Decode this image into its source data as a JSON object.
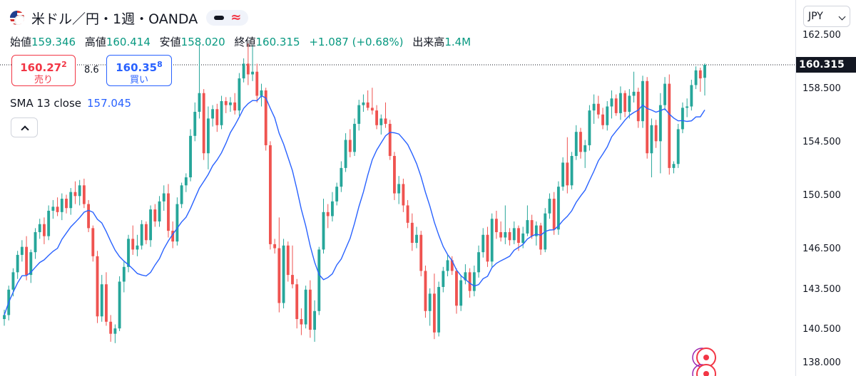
{
  "legend": {
    "symbol": "米ドル／円・1週・OANDA",
    "ohlc": [
      {
        "label": "始値",
        "value": "159.346"
      },
      {
        "label": "高値",
        "value": "160.414"
      },
      {
        "label": "安値",
        "value": "158.020"
      },
      {
        "label": "終値",
        "value": "160.315"
      }
    ],
    "change": "+1.087 (+0.68%)",
    "volume_label": "出来高",
    "volume": "1.4M",
    "sell": {
      "price_main": "160.27",
      "price_small": "2",
      "label": "売り"
    },
    "spread": "8.6",
    "buy": {
      "price_main": "160.35",
      "price_small": "8",
      "label": "買い"
    },
    "sma_label": "SMA 13 close",
    "sma_value": "157.045"
  },
  "currency": "JPY",
  "colors": {
    "up": "#26a69a",
    "down": "#ef5350",
    "sma": "#2962ff",
    "last_bg": "#131722"
  },
  "chart_data": {
    "type": "candlestick",
    "title": "",
    "y_axis": {
      "position": "right",
      "tick_labels": [
        "162.500",
        "158.500",
        "154.500",
        "150.500",
        "146.500",
        "143.500",
        "140.500",
        "138.000"
      ],
      "range": [
        137.4,
        162.8
      ]
    },
    "last_price": "160.315",
    "candles": [
      [
        141.3,
        142.0,
        140.8,
        141.6
      ],
      [
        141.6,
        143.8,
        141.2,
        143.5
      ],
      [
        143.5,
        145.1,
        143.0,
        144.8
      ],
      [
        144.8,
        146.4,
        144.3,
        146.1
      ],
      [
        146.1,
        147.2,
        145.6,
        146.7
      ],
      [
        146.7,
        147.5,
        144.2,
        144.6
      ],
      [
        144.6,
        146.5,
        144.0,
        146.3
      ],
      [
        146.3,
        148.1,
        145.8,
        147.8
      ],
      [
        147.8,
        148.8,
        147.3,
        148.4
      ],
      [
        148.4,
        148.9,
        146.9,
        147.5
      ],
      [
        147.5,
        149.8,
        147.2,
        149.4
      ],
      [
        149.4,
        150.2,
        148.8,
        149.7
      ],
      [
        149.7,
        150.4,
        149.0,
        149.3
      ],
      [
        149.3,
        150.7,
        148.7,
        150.3
      ],
      [
        150.3,
        150.6,
        149.2,
        149.6
      ],
      [
        149.6,
        151.1,
        149.1,
        150.8
      ],
      [
        150.8,
        151.6,
        149.9,
        150.5
      ],
      [
        150.5,
        151.7,
        149.8,
        151.3
      ],
      [
        151.3,
        151.8,
        149.6,
        149.9
      ],
      [
        149.9,
        150.2,
        147.8,
        148.1
      ],
      [
        148.1,
        148.3,
        145.6,
        146.0
      ],
      [
        146.0,
        146.4,
        141.0,
        141.5
      ],
      [
        141.5,
        144.6,
        141.1,
        143.9
      ],
      [
        143.9,
        144.8,
        140.8,
        141.1
      ],
      [
        141.1,
        141.6,
        139.6,
        140.2
      ],
      [
        140.2,
        140.9,
        139.5,
        140.6
      ],
      [
        140.6,
        144.5,
        140.4,
        144.1
      ],
      [
        144.1,
        145.6,
        143.3,
        145.2
      ],
      [
        145.2,
        147.6,
        144.8,
        147.3
      ],
      [
        147.3,
        148.3,
        146.1,
        146.5
      ],
      [
        146.5,
        147.6,
        146.0,
        146.8
      ],
      [
        146.8,
        148.7,
        146.5,
        148.4
      ],
      [
        148.4,
        148.6,
        146.9,
        147.2
      ],
      [
        147.2,
        149.8,
        146.7,
        149.5
      ],
      [
        149.5,
        149.9,
        148.2,
        148.6
      ],
      [
        148.6,
        150.5,
        148.2,
        150.1
      ],
      [
        150.1,
        151.3,
        149.4,
        150.7
      ],
      [
        150.7,
        151.4,
        147.4,
        147.9
      ],
      [
        147.9,
        148.6,
        146.6,
        147.1
      ],
      [
        147.1,
        150.4,
        146.8,
        149.9
      ],
      [
        149.9,
        151.5,
        149.6,
        151.3
      ],
      [
        151.3,
        152.2,
        150.8,
        151.9
      ],
      [
        151.9,
        155.5,
        151.6,
        155.0
      ],
      [
        155.0,
        157.5,
        154.6,
        156.8
      ],
      [
        156.8,
        161.8,
        156.3,
        158.2
      ],
      [
        158.2,
        158.5,
        153.2,
        153.7
      ],
      [
        153.7,
        157.2,
        152.5,
        156.3
      ],
      [
        156.3,
        157.3,
        155.7,
        157.0
      ],
      [
        157.0,
        157.4,
        155.3,
        155.8
      ],
      [
        155.8,
        158.0,
        155.5,
        157.6
      ],
      [
        157.6,
        157.9,
        156.7,
        157.3
      ],
      [
        157.3,
        157.9,
        156.8,
        157.5
      ],
      [
        157.5,
        158.2,
        156.6,
        156.9
      ],
      [
        156.9,
        159.7,
        156.5,
        159.3
      ],
      [
        159.3,
        160.8,
        159.0,
        160.4
      ],
      [
        160.4,
        161.9,
        158.8,
        159.6
      ],
      [
        159.6,
        161.8,
        159.1,
        159.8
      ],
      [
        159.8,
        160.4,
        157.5,
        158.0
      ],
      [
        158.0,
        158.9,
        157.2,
        158.4
      ],
      [
        158.4,
        158.6,
        153.9,
        154.3
      ],
      [
        154.3,
        154.6,
        146.5,
        146.9
      ],
      [
        146.9,
        147.3,
        146.2,
        146.6
      ],
      [
        146.6,
        148.9,
        141.8,
        142.5
      ],
      [
        142.5,
        147.3,
        142.1,
        146.8
      ],
      [
        146.8,
        147.1,
        144.1,
        144.6
      ],
      [
        144.6,
        146.8,
        143.6,
        143.9
      ],
      [
        143.9,
        144.3,
        140.6,
        141.3
      ],
      [
        141.3,
        142.1,
        140.1,
        140.9
      ],
      [
        140.9,
        143.8,
        140.6,
        143.5
      ],
      [
        143.5,
        144.2,
        139.9,
        140.5
      ],
      [
        140.5,
        142.7,
        139.6,
        141.9
      ],
      [
        141.9,
        146.7,
        141.6,
        146.5
      ],
      [
        146.5,
        150.3,
        146.2,
        149.3
      ],
      [
        149.3,
        149.9,
        148.1,
        149.0
      ],
      [
        149.0,
        150.8,
        148.6,
        150.1
      ],
      [
        150.1,
        151.5,
        149.8,
        151.2
      ],
      [
        151.2,
        153.1,
        150.8,
        152.6
      ],
      [
        152.6,
        155.2,
        152.3,
        154.7
      ],
      [
        154.7,
        155.5,
        153.4,
        153.8
      ],
      [
        153.8,
        156.3,
        153.5,
        155.9
      ],
      [
        155.9,
        157.7,
        155.4,
        157.3
      ],
      [
        157.3,
        158.1,
        156.8,
        157.5
      ],
      [
        157.5,
        158.4,
        156.9,
        157.1
      ],
      [
        157.1,
        158.6,
        156.6,
        156.9
      ],
      [
        156.9,
        157.3,
        155.5,
        155.8
      ],
      [
        155.8,
        156.6,
        155.1,
        156.3
      ],
      [
        156.3,
        157.5,
        155.6,
        155.9
      ],
      [
        155.9,
        156.2,
        153.2,
        153.5
      ],
      [
        153.5,
        153.8,
        150.2,
        150.7
      ],
      [
        150.7,
        152.0,
        149.9,
        151.4
      ],
      [
        151.4,
        151.8,
        149.3,
        149.8
      ],
      [
        149.8,
        150.2,
        148.1,
        148.5
      ],
      [
        148.5,
        149.2,
        146.4,
        147.0
      ],
      [
        147.0,
        148.2,
        146.6,
        147.6
      ],
      [
        147.6,
        147.9,
        144.5,
        144.9
      ],
      [
        144.9,
        145.3,
        141.4,
        141.9
      ],
      [
        141.9,
        143.6,
        140.8,
        143.2
      ],
      [
        143.2,
        144.7,
        139.8,
        140.3
      ],
      [
        140.3,
        144.1,
        140.0,
        143.7
      ],
      [
        143.7,
        145.2,
        143.3,
        144.9
      ],
      [
        144.9,
        146.1,
        144.5,
        145.7
      ],
      [
        145.7,
        146.0,
        144.6,
        144.9
      ],
      [
        144.9,
        145.1,
        141.7,
        142.3
      ],
      [
        142.3,
        144.6,
        141.9,
        144.2
      ],
      [
        144.2,
        145.4,
        143.9,
        144.8
      ],
      [
        144.8,
        145.1,
        142.9,
        143.4
      ],
      [
        143.4,
        145.3,
        143.0,
        144.8
      ],
      [
        144.8,
        146.8,
        144.4,
        146.3
      ],
      [
        146.3,
        148.1,
        145.9,
        147.6
      ],
      [
        147.6,
        148.2,
        145.2,
        145.6
      ],
      [
        145.6,
        149.2,
        145.2,
        148.8
      ],
      [
        148.8,
        149.4,
        147.3,
        147.8
      ],
      [
        147.8,
        148.6,
        147.1,
        147.4
      ],
      [
        147.4,
        149.8,
        146.9,
        147.8
      ],
      [
        147.8,
        148.1,
        146.8,
        147.2
      ],
      [
        147.2,
        148.6,
        146.9,
        148.1
      ],
      [
        148.1,
        148.3,
        146.4,
        147.0
      ],
      [
        147.0,
        148.2,
        146.6,
        147.7
      ],
      [
        147.7,
        149.8,
        147.5,
        148.7
      ],
      [
        148.7,
        149.1,
        147.3,
        147.5
      ],
      [
        147.5,
        148.6,
        146.8,
        148.3
      ],
      [
        148.3,
        148.5,
        146.1,
        146.5
      ],
      [
        146.5,
        149.6,
        146.3,
        149.2
      ],
      [
        149.2,
        150.7,
        148.8,
        150.3
      ],
      [
        150.3,
        150.8,
        147.6,
        148.0
      ],
      [
        148.0,
        151.6,
        147.6,
        151.2
      ],
      [
        151.2,
        153.4,
        150.9,
        153.0
      ],
      [
        153.0,
        154.9,
        150.7,
        151.3
      ],
      [
        151.3,
        153.8,
        151.0,
        153.5
      ],
      [
        153.5,
        155.8,
        153.2,
        155.3
      ],
      [
        155.3,
        155.6,
        153.3,
        153.8
      ],
      [
        153.8,
        154.7,
        152.6,
        154.3
      ],
      [
        154.3,
        157.3,
        153.9,
        156.9
      ],
      [
        156.9,
        158.1,
        155.9,
        157.4
      ],
      [
        157.4,
        158.0,
        156.3,
        156.6
      ],
      [
        156.6,
        157.1,
        155.5,
        155.8
      ],
      [
        155.8,
        157.6,
        155.4,
        157.2
      ],
      [
        157.2,
        158.4,
        156.3,
        157.8
      ],
      [
        157.8,
        158.1,
        156.5,
        156.7
      ],
      [
        156.7,
        158.7,
        156.2,
        158.2
      ],
      [
        158.2,
        158.4,
        156.4,
        156.8
      ],
      [
        156.8,
        158.5,
        156.3,
        158.0
      ],
      [
        158.0,
        159.8,
        157.5,
        158.3
      ],
      [
        158.3,
        158.6,
        155.6,
        156.1
      ],
      [
        156.1,
        159.5,
        155.6,
        159.1
      ],
      [
        159.1,
        159.4,
        153.3,
        153.7
      ],
      [
        153.7,
        156.3,
        151.9,
        155.8
      ],
      [
        155.8,
        156.2,
        154.1,
        154.6
      ],
      [
        154.6,
        158.2,
        152.2,
        157.3
      ],
      [
        157.3,
        159.4,
        156.9,
        158.9
      ],
      [
        158.9,
        159.6,
        152.1,
        152.6
      ],
      [
        152.6,
        153.1,
        152.2,
        152.9
      ],
      [
        152.9,
        155.9,
        152.6,
        155.5
      ],
      [
        155.5,
        157.5,
        155.2,
        157.1
      ],
      [
        157.1,
        157.8,
        156.4,
        157.2
      ],
      [
        157.2,
        159.2,
        156.9,
        158.8
      ],
      [
        158.8,
        160.2,
        158.5,
        159.9
      ],
      [
        159.9,
        160.1,
        158.3,
        159.3
      ],
      [
        159.346,
        160.414,
        158.02,
        160.315
      ]
    ]
  }
}
